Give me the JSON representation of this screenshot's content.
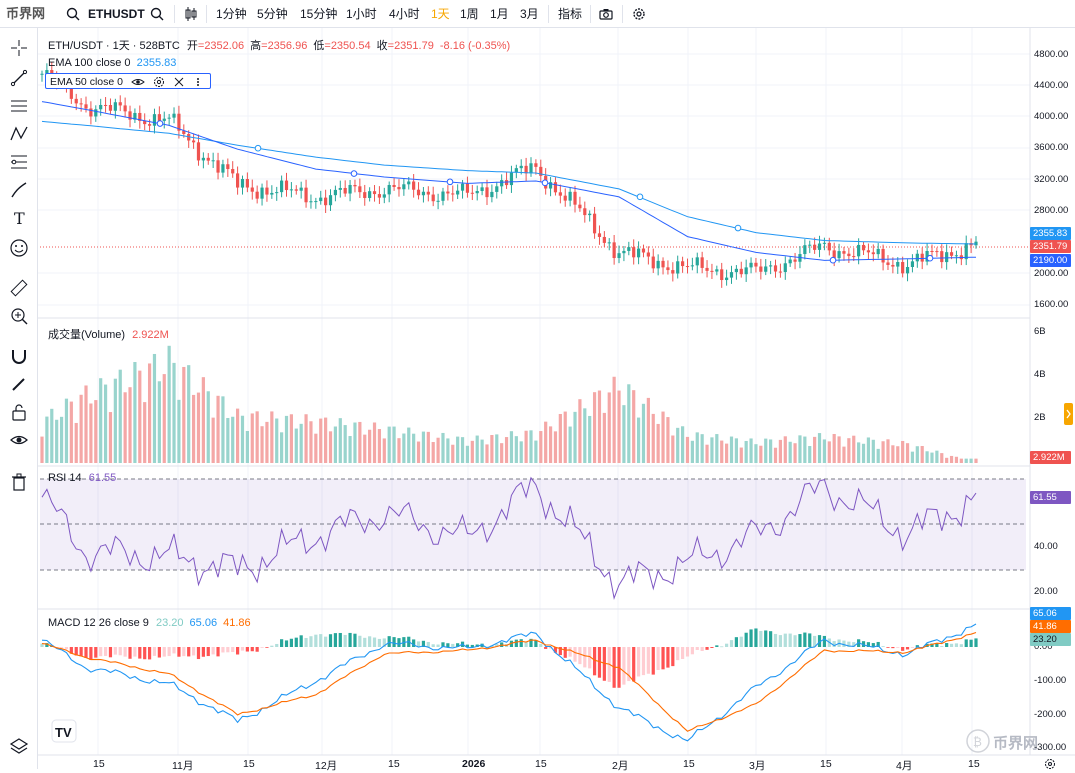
{
  "brand": {
    "logo_text": "币界网",
    "watermark": "币界网"
  },
  "toolbar": {
    "symbol": "ETHUSDT",
    "intervals": [
      "1分钟",
      "5分钟",
      "15分钟",
      "1小时",
      "4小时",
      "1天",
      "1周",
      "1月",
      "3月"
    ],
    "active_interval": "1天",
    "indicators_label": "指标"
  },
  "header": {
    "title": "ETH/USDT · 1天 · 528BTC",
    "open_label": "开",
    "open": "=2352.06",
    "high_label": "高",
    "high": "=2356.96",
    "low_label": "低",
    "low": "=2350.54",
    "close_label": "收",
    "close": "=2351.79",
    "change": "-8.16 (-0.35%)"
  },
  "ema100": {
    "label": "EMA 100 close 0",
    "value": "2355.83"
  },
  "ema50": {
    "label": "EMA 50 close 0",
    "value": "2190.00"
  },
  "volume": {
    "label": "成交量(Volume)",
    "value": "2.922M"
  },
  "rsi": {
    "label": "RSI 14",
    "value": "61.55"
  },
  "macd": {
    "label": "MACD 12 26 close 9",
    "hist": "23.20",
    "macd": "65.06",
    "signal": "41.86"
  },
  "price_label": "2351.79",
  "axes": {
    "price_ticks": [
      "4800.00",
      "4400.00",
      "4000.00",
      "3600.00",
      "3200.00",
      "2800.00",
      "2000.00",
      "1600.00"
    ],
    "volume_ticks": [
      "6B",
      "4B",
      "2B"
    ],
    "rsi_ticks": [
      "40.00",
      "20.00"
    ],
    "macd_ticks": [
      "0.00",
      "-100.00",
      "-200.00",
      "-300.00"
    ],
    "x_ticks": [
      "15",
      "11月",
      "15",
      "12月",
      "15",
      "2026",
      "15",
      "2月",
      "15",
      "3月",
      "15",
      "4月",
      "15"
    ]
  },
  "colors": {
    "up": "#26a69a",
    "down": "#ef5350",
    "ema100": "#2196f3",
    "ema50": "#2962ff",
    "rsi": "#7e57c2",
    "macd": "#2196f3",
    "signal": "#ff6d00",
    "accent": "#f7a600"
  },
  "chart_data": [
    {
      "type": "line",
      "title": "ETH/USDT · 1天 · 528BTC",
      "ylabel": "",
      "xlabel": "",
      "ylim": [
        1500,
        4900
      ],
      "x": [
        "2025-10-06",
        "2025-10-15",
        "2025-11-01",
        "2025-11-15",
        "2025-12-01",
        "2025-12-15",
        "2026-01-01",
        "2026-01-15",
        "2026-02-01",
        "2026-02-15",
        "2026-03-01",
        "2026-03-15",
        "2026-04-01",
        "2026-04-15"
      ],
      "series": [
        {
          "name": "ETH/USDT close",
          "values": [
            4500,
            4100,
            3900,
            3100,
            2950,
            3050,
            2970,
            3320,
            2250,
            2050,
            2000,
            2330,
            2100,
            2352
          ]
        },
        {
          "name": "EMA 100",
          "values": [
            3900,
            3850,
            3750,
            3600,
            3450,
            3350,
            3280,
            3250,
            3050,
            2700,
            2500,
            2400,
            2370,
            2356
          ]
        },
        {
          "name": "EMA 50",
          "values": [
            4150,
            4050,
            3850,
            3550,
            3300,
            3200,
            3120,
            3150,
            2950,
            2450,
            2250,
            2150,
            2170,
            2190
          ]
        }
      ]
    },
    {
      "type": "bar",
      "title": "成交量(Volume)",
      "last_value": "2.922M",
      "ylim": [
        0,
        6000000000
      ],
      "x": [
        "2025-10-06",
        "2025-10-15",
        "2025-11-01",
        "2025-11-15",
        "2025-12-01",
        "2025-12-15",
        "2026-01-01",
        "2026-01-15",
        "2026-02-01",
        "2026-02-15",
        "2026-03-01",
        "2026-03-15",
        "2026-04-01",
        "2026-04-15"
      ],
      "values": [
        2200000000,
        3600000000,
        5400000000,
        2500000000,
        2200000000,
        1800000000,
        1200000000,
        1600000000,
        4100000000,
        1500000000,
        1100000000,
        1400000000,
        1000000000,
        2922000
      ]
    },
    {
      "type": "line",
      "title": "RSI 14",
      "ylim": [
        10,
        80
      ],
      "x": [
        "2025-10-06",
        "2025-10-15",
        "2025-11-01",
        "2025-11-15",
        "2025-12-01",
        "2025-12-15",
        "2026-01-01",
        "2026-01-15",
        "2026-02-01",
        "2026-02-15",
        "2026-03-01",
        "2026-03-15",
        "2026-04-01",
        "2026-04-15"
      ],
      "series": [
        {
          "name": "RSI",
          "values": [
            62,
            38,
            36,
            30,
            45,
            55,
            44,
            67,
            24,
            33,
            45,
            67,
            46,
            61.55
          ]
        }
      ],
      "bands": [
        30,
        50,
        70
      ]
    },
    {
      "type": "line",
      "title": "MACD 12 26 close 9",
      "ylim": [
        -310,
        90
      ],
      "x": [
        "2025-10-06",
        "2025-10-15",
        "2025-11-01",
        "2025-11-15",
        "2025-12-01",
        "2025-12-15",
        "2026-01-01",
        "2026-01-15",
        "2026-02-01",
        "2026-02-15",
        "2026-03-01",
        "2026-03-15",
        "2026-04-01",
        "2026-04-15"
      ],
      "series": [
        {
          "name": "MACD",
          "values": [
            20,
            -60,
            -110,
            -220,
            -100,
            10,
            -5,
            40,
            -180,
            -280,
            -120,
            20,
            -20,
            65.06
          ]
        },
        {
          "name": "Signal",
          "values": [
            10,
            -30,
            -80,
            -200,
            -140,
            -20,
            -10,
            20,
            -60,
            -250,
            -170,
            -10,
            -15,
            41.86
          ]
        },
        {
          "name": "Histogram",
          "values": [
            10,
            -30,
            -30,
            -20,
            40,
            30,
            5,
            20,
            -120,
            -30,
            50,
            30,
            -5,
            23.2
          ]
        }
      ]
    }
  ]
}
